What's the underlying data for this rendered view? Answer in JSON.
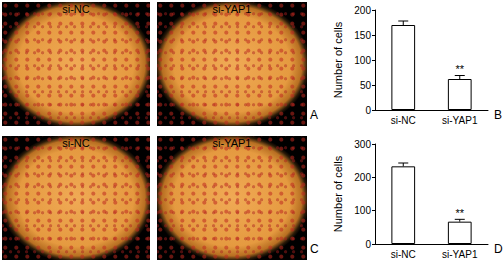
{
  "images": [
    {
      "panel": "A",
      "captions": [
        "si-NC",
        "si-YAP1"
      ]
    },
    {
      "panel": "C",
      "captions": [
        "si-NC",
        "si-YAP1"
      ]
    }
  ],
  "chart_data": [
    {
      "type": "bar",
      "panel": "B",
      "categories": [
        "si-NC",
        "si-YAP1"
      ],
      "values": [
        170,
        62
      ],
      "errors": [
        8,
        7
      ],
      "annotations": [
        null,
        "**"
      ],
      "y_label": "Number of cells",
      "color": "#ffffff",
      "ylim": [
        0,
        200
      ],
      "yticks": [
        0,
        50,
        100,
        150,
        200
      ],
      "grid": false
    },
    {
      "type": "bar",
      "panel": "D",
      "categories": [
        "si-NC",
        "si-YAP1"
      ],
      "values": [
        233,
        67
      ],
      "errors": [
        10,
        7
      ],
      "annotations": [
        null,
        "**"
      ],
      "y_label": "Number of cells",
      "color": "#ffffff",
      "ylim": [
        0,
        300
      ],
      "yticks": [
        0,
        100,
        200,
        300
      ],
      "grid": false
    }
  ]
}
